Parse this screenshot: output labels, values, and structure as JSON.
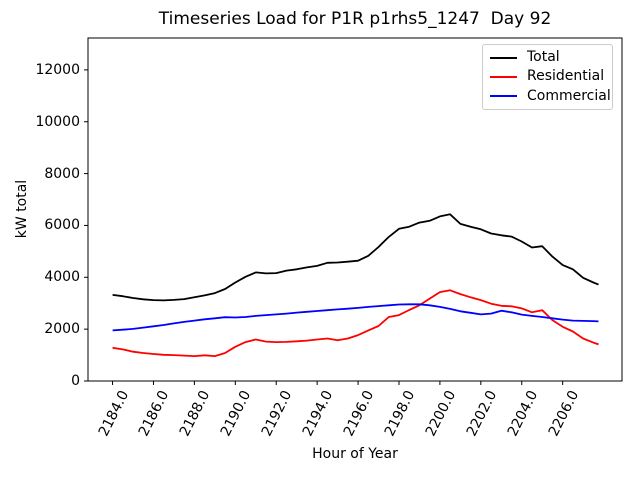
{
  "chart_data": {
    "type": "line",
    "title": "Timeseries Load for P1R p1rhs5_1247  Day 92",
    "xlabel": "Hour of Year",
    "ylabel": "kW total",
    "xlim": [
      2182.8,
      2208.9
    ],
    "ylim": [
      0,
      13230
    ],
    "grid": false,
    "legend_position": "upper right",
    "x_ticks": {
      "values": [
        2184,
        2186,
        2188,
        2190,
        2192,
        2194,
        2196,
        2198,
        2200,
        2202,
        2204,
        2206
      ],
      "labels": [
        "2184.0",
        "2186.0",
        "2188.0",
        "2190.0",
        "2192.0",
        "2194.0",
        "2196.0",
        "2198.0",
        "2200.0",
        "2202.0",
        "2204.0",
        "2206.0"
      ]
    },
    "y_ticks": {
      "values": [
        0,
        2000,
        4000,
        6000,
        8000,
        10000,
        12000
      ],
      "labels": [
        "0",
        "2000",
        "4000",
        "6000",
        "8000",
        "10000",
        "12000"
      ]
    },
    "x": [
      2184.0,
      2184.5,
      2185.0,
      2185.5,
      2186.0,
      2186.5,
      2187.0,
      2187.5,
      2188.0,
      2188.5,
      2189.0,
      2189.5,
      2190.0,
      2190.5,
      2191.0,
      2191.5,
      2192.0,
      2192.5,
      2193.0,
      2193.5,
      2194.0,
      2194.5,
      2195.0,
      2195.5,
      2196.0,
      2196.5,
      2197.0,
      2197.5,
      2198.0,
      2198.5,
      2199.0,
      2199.5,
      2200.0,
      2200.5,
      2201.0,
      2201.5,
      2202.0,
      2202.5,
      2203.0,
      2203.5,
      2204.0,
      2204.5,
      2205.0,
      2205.5,
      2206.0,
      2206.5,
      2207.0,
      2207.5,
      2207.75
    ],
    "series": [
      {
        "name": "Total",
        "color": "#000000",
        "values": [
          3320,
          3270,
          3200,
          3150,
          3120,
          3110,
          3130,
          3160,
          3230,
          3300,
          3390,
          3550,
          3800,
          4020,
          4190,
          4150,
          4160,
          4260,
          4310,
          4380,
          4440,
          4560,
          4570,
          4600,
          4640,
          4830,
          5170,
          5560,
          5870,
          5950,
          6110,
          6180,
          6350,
          6430,
          6060,
          5950,
          5850,
          5690,
          5620,
          5570,
          5380,
          5150,
          5200,
          4800,
          4470,
          4310,
          3980,
          3800,
          3720
        ]
      },
      {
        "name": "Residential",
        "color": "#ff0000",
        "values": [
          1280,
          1220,
          1130,
          1080,
          1040,
          1010,
          1000,
          980,
          960,
          990,
          960,
          1080,
          1320,
          1500,
          1600,
          1520,
          1500,
          1510,
          1530,
          1560,
          1600,
          1640,
          1570,
          1640,
          1770,
          1950,
          2120,
          2470,
          2540,
          2740,
          2920,
          3180,
          3430,
          3500,
          3350,
          3230,
          3120,
          2980,
          2900,
          2880,
          2800,
          2650,
          2730,
          2350,
          2090,
          1910,
          1640,
          1480,
          1410
        ]
      },
      {
        "name": "Commercial",
        "color": "#0000ff",
        "values": [
          1950,
          1980,
          2010,
          2060,
          2110,
          2160,
          2220,
          2280,
          2330,
          2380,
          2420,
          2460,
          2450,
          2470,
          2510,
          2540,
          2570,
          2600,
          2640,
          2670,
          2700,
          2730,
          2760,
          2790,
          2820,
          2860,
          2890,
          2920,
          2950,
          2960,
          2960,
          2920,
          2860,
          2780,
          2690,
          2630,
          2570,
          2600,
          2710,
          2650,
          2560,
          2510,
          2470,
          2420,
          2370,
          2330,
          2320,
          2310,
          2300
        ]
      }
    ]
  }
}
